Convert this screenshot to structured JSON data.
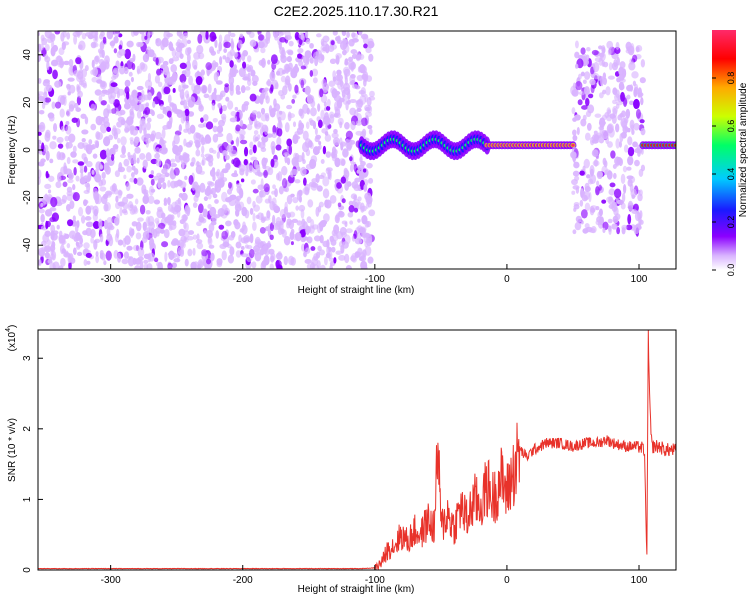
{
  "figure": {
    "title": "C2E2.2025.110.17.30.R21"
  },
  "chart_data": [
    {
      "type": "heatmap",
      "title": "C2E2.2025.110.17.30.R21",
      "xlabel": "Height of straight line (km)",
      "ylabel": "Frequency (Hz)",
      "xlim": [
        -355,
        128
      ],
      "ylim": [
        -50,
        50
      ],
      "xticks": [
        -300,
        -200,
        -100,
        0,
        100
      ],
      "yticks": [
        -40,
        -20,
        0,
        20,
        40
      ],
      "colorbar": {
        "label": "Normalized spectral amplitude",
        "range": [
          0,
          1
        ],
        "ticks": [
          0.0,
          0.2,
          0.4,
          0.6,
          0.8
        ],
        "tick_labels": [
          "0.0",
          "0.2",
          "0.4",
          "0.6",
          "0.8"
        ],
        "colormap": [
          "#ffffff",
          "#d9b3ff",
          "#8b00ff",
          "#1a1aff",
          "#00ccff",
          "#00ff66",
          "#ccff00",
          "#ffaa00",
          "#ff0000",
          "#ff2a6a"
        ]
      },
      "regions": [
        {
          "name": "noise",
          "x": [
            -355,
            -102
          ],
          "freq": [
            -50,
            50
          ],
          "level": 0.15
        },
        {
          "name": "transition",
          "x": [
            -110,
            -15
          ],
          "freq_center": 2,
          "level": 0.5
        },
        {
          "name": "main-band",
          "x": [
            -15,
            50
          ],
          "freq_center": 2,
          "level": 0.95
        },
        {
          "name": "noise-patch",
          "x": [
            50,
            103
          ],
          "freq": [
            -35,
            45
          ],
          "level": 0.2
        },
        {
          "name": "band-end",
          "x": [
            103,
            128
          ],
          "freq_center": 2,
          "level": 0.85
        }
      ]
    },
    {
      "type": "line",
      "xlabel": "Height of straight line (km)",
      "ylabel": "SNR (10 * v/v)",
      "y_multiplier": "(x10",
      "y_multiplier_exp": "4",
      "xlim": [
        -355,
        128
      ],
      "ylim": [
        0,
        3.4
      ],
      "xticks": [
        -300,
        -200,
        -100,
        0,
        100
      ],
      "yticks": [
        0,
        1,
        2,
        3
      ],
      "color": "#e8322a",
      "series": [
        {
          "x": [
            -355,
            -300,
            -200,
            -110,
            -100,
            -95,
            -90,
            -85,
            -80,
            -75,
            -70,
            -65,
            -60,
            -55,
            -52,
            -50,
            -45,
            -40,
            -35,
            -30,
            -25,
            -20,
            -15,
            -10,
            -5,
            0,
            5,
            10,
            15,
            20,
            25,
            30,
            40,
            50,
            60,
            70,
            75,
            80,
            90,
            100,
            104,
            106,
            107,
            108,
            109,
            110,
            112,
            115,
            120,
            128
          ],
          "y": [
            0.02,
            0.02,
            0.02,
            0.02,
            0.03,
            0.1,
            0.3,
            0.35,
            0.5,
            0.4,
            0.55,
            0.5,
            0.7,
            0.6,
            1.8,
            0.6,
            0.8,
            0.6,
            0.9,
            0.7,
            1.0,
            0.9,
            1.2,
            1.0,
            1.3,
            1.1,
            1.4,
            1.7,
            1.6,
            1.7,
            1.75,
            1.8,
            1.8,
            1.75,
            1.8,
            1.8,
            1.85,
            1.8,
            1.75,
            1.75,
            1.7,
            0.2,
            3.3,
            2.5,
            1.9,
            1.75,
            1.75,
            1.75,
            1.7,
            1.7
          ]
        }
      ]
    }
  ]
}
